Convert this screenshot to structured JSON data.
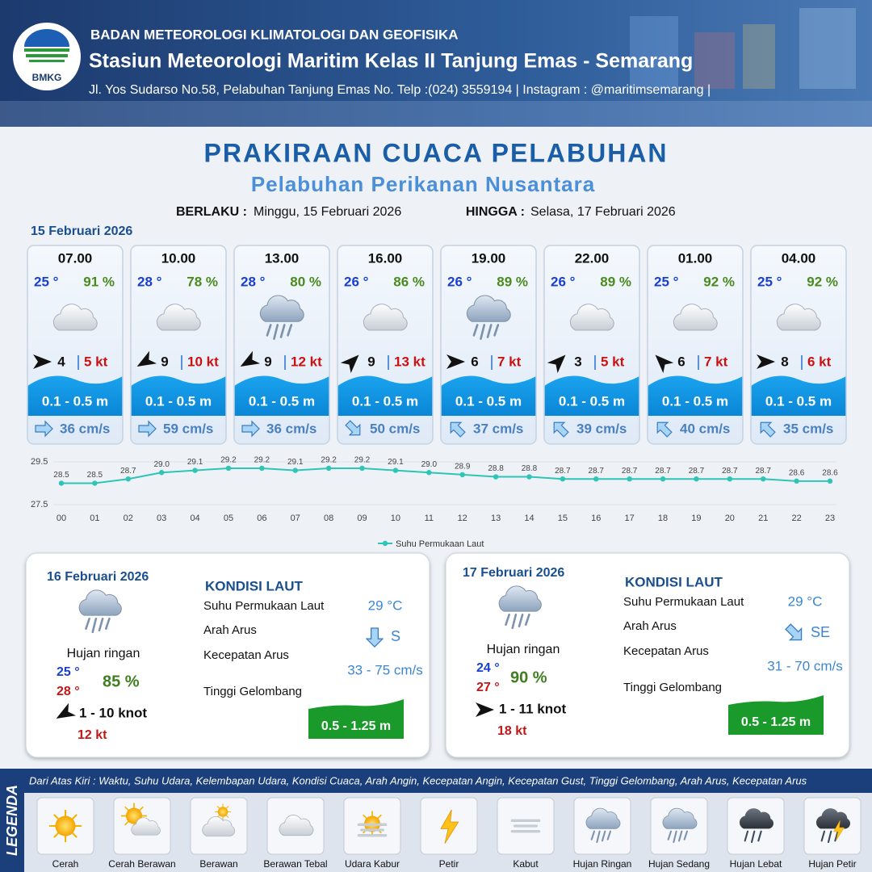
{
  "header": {
    "agency": "BADAN METEOROLOGI KLIMATOLOGI DAN GEOFISIKA",
    "station": "Stasiun Meteorologi Maritim Kelas II Tanjung Emas - Semarang",
    "address": "Jl. Yos Sudarso No.58, Pelabuhan Tanjung Emas No. Telp :(024) 3559194 | Instagram : @maritimsemarang |",
    "logo": "BMKG"
  },
  "title": "PRAKIRAAN CUACA PELABUHAN",
  "subtitle": "Pelabuhan Perikanan Nusantara",
  "validity": {
    "from_label": "BERLAKU :",
    "from": "Minggu, 15 Februari 2026",
    "to_label": "HINGGA :",
    "to": "Selasa, 17 Februari 2026"
  },
  "today": {
    "date": "15 Februari 2026",
    "forecasts": [
      {
        "time": "07.00",
        "temperature": "25 °",
        "humidity": "91 %",
        "wind_speed": "4",
        "gust": "5 kt",
        "wave": "0.1 - 0.5 m",
        "current": "36 cm/s"
      },
      {
        "time": "10.00",
        "temperature": "28 °",
        "humidity": "78 %",
        "wind_speed": "9",
        "gust": "10 kt",
        "wave": "0.1 - 0.5 m",
        "current": "59 cm/s"
      },
      {
        "time": "13.00",
        "temperature": "28 °",
        "humidity": "80 %",
        "wind_speed": "9",
        "gust": "12 kt",
        "wave": "0.1 - 0.5 m",
        "current": "36 cm/s"
      },
      {
        "time": "16.00",
        "temperature": "26 °",
        "humidity": "86 %",
        "wind_speed": "9",
        "gust": "13 kt",
        "wave": "0.1 - 0.5 m",
        "current": "50 cm/s"
      },
      {
        "time": "19.00",
        "temperature": "26 °",
        "humidity": "89 %",
        "wind_speed": "6",
        "gust": "7 kt",
        "wave": "0.1 - 0.5 m",
        "current": "37 cm/s"
      },
      {
        "time": "22.00",
        "temperature": "26 °",
        "humidity": "89 %",
        "wind_speed": "3",
        "gust": "5 kt",
        "wave": "0.1 - 0.5 m",
        "current": "39 cm/s"
      },
      {
        "time": "01.00",
        "temperature": "25 °",
        "humidity": "92 %",
        "wind_speed": "6",
        "gust": "7 kt",
        "wave": "0.1 - 0.5 m",
        "current": "40 cm/s"
      },
      {
        "time": "04.00",
        "temperature": "25 °",
        "humidity": "92 %",
        "wind_speed": "8",
        "gust": "6 kt",
        "wave": "0.1 - 0.5 m",
        "current": "35 cm/s"
      }
    ]
  },
  "chart_data": {
    "type": "line",
    "categories": [
      "00",
      "01",
      "02",
      "03",
      "04",
      "05",
      "06",
      "07",
      "08",
      "09",
      "10",
      "11",
      "12",
      "13",
      "14",
      "15",
      "16",
      "17",
      "18",
      "19",
      "20",
      "21",
      "22",
      "23"
    ],
    "series": [
      {
        "name": "Suhu Permukaan Laut",
        "color": "#2ec4b6",
        "values": [
          28.5,
          28.5,
          28.7,
          29.0,
          29.1,
          29.2,
          29.2,
          29.1,
          29.2,
          29.2,
          29.1,
          29.0,
          28.9,
          28.8,
          28.8,
          28.7,
          28.7,
          28.7,
          28.7,
          28.7,
          28.7,
          28.7,
          28.6,
          28.6
        ],
        "value_labels": [
          "28.5",
          "28.5",
          "28.7",
          "29.0",
          "29.1",
          "29.2",
          "29.2",
          "29.1",
          "29.2",
          "29.2",
          "29.1",
          "29.0",
          "28.9",
          "28.8",
          "28.8",
          "28.7",
          "28.7",
          "28.7",
          "28.7",
          "28.7",
          "28.7",
          "28.7",
          "28.6",
          "28.6"
        ]
      }
    ],
    "ylim": [
      27.5,
      29.5
    ],
    "yticks": [
      27.5,
      29.5
    ],
    "legend": "bottom"
  },
  "days": [
    {
      "date": "16 Februari 2026",
      "condition": "Hujan ringan",
      "temp_min": "25 °",
      "temp_max": "28 °",
      "humidity": "85 %",
      "wind": "1 - 10 knot",
      "gust": "12 kt",
      "sea": {
        "title": "KONDISI LAUT",
        "sst_label": "Suhu Permukaan Laut",
        "sst": "29 °C",
        "current_dir_label": "Arah Arus",
        "current_dir": "S",
        "current_speed_label": "Kecepatan Arus",
        "current_speed": "33 - 75 cm/s",
        "wave_label": "Tinggi Gelombang",
        "wave": "0.5 - 1.25 m"
      }
    },
    {
      "date": "17 Februari 2026",
      "condition": "Hujan ringan",
      "temp_min": "24 °",
      "temp_max": "27 °",
      "humidity": "90 %",
      "wind": "1 - 11 knot",
      "gust": "18 kt",
      "sea": {
        "title": "KONDISI LAUT",
        "sst_label": "Suhu Permukaan Laut",
        "sst": "29 °C",
        "current_dir_label": "Arah Arus",
        "current_dir": "SE",
        "current_speed_label": "Kecepatan Arus",
        "current_speed": "31 - 70 cm/s",
        "wave_label": "Tinggi Gelombang",
        "wave": "0.5 - 1.25 m"
      }
    }
  ],
  "legend": {
    "title": "LEGENDA",
    "description": "Dari Atas Kiri : Waktu, Suhu Udara, Kelembapan Udara, Kondisi Cuaca, Arah Angin, Kecepatan Angin, Kecepatan Gust, Tinggi Gelombang, Arah Arus, Kecepatan Arus",
    "items": [
      "Cerah",
      "Cerah Berawan",
      "Berawan",
      "Berawan Tebal",
      "Udara Kabur",
      "Petir",
      "Kabut",
      "Hujan Ringan",
      "Hujan Sedang",
      "Hujan Lebat",
      "Hujan Petir"
    ]
  }
}
